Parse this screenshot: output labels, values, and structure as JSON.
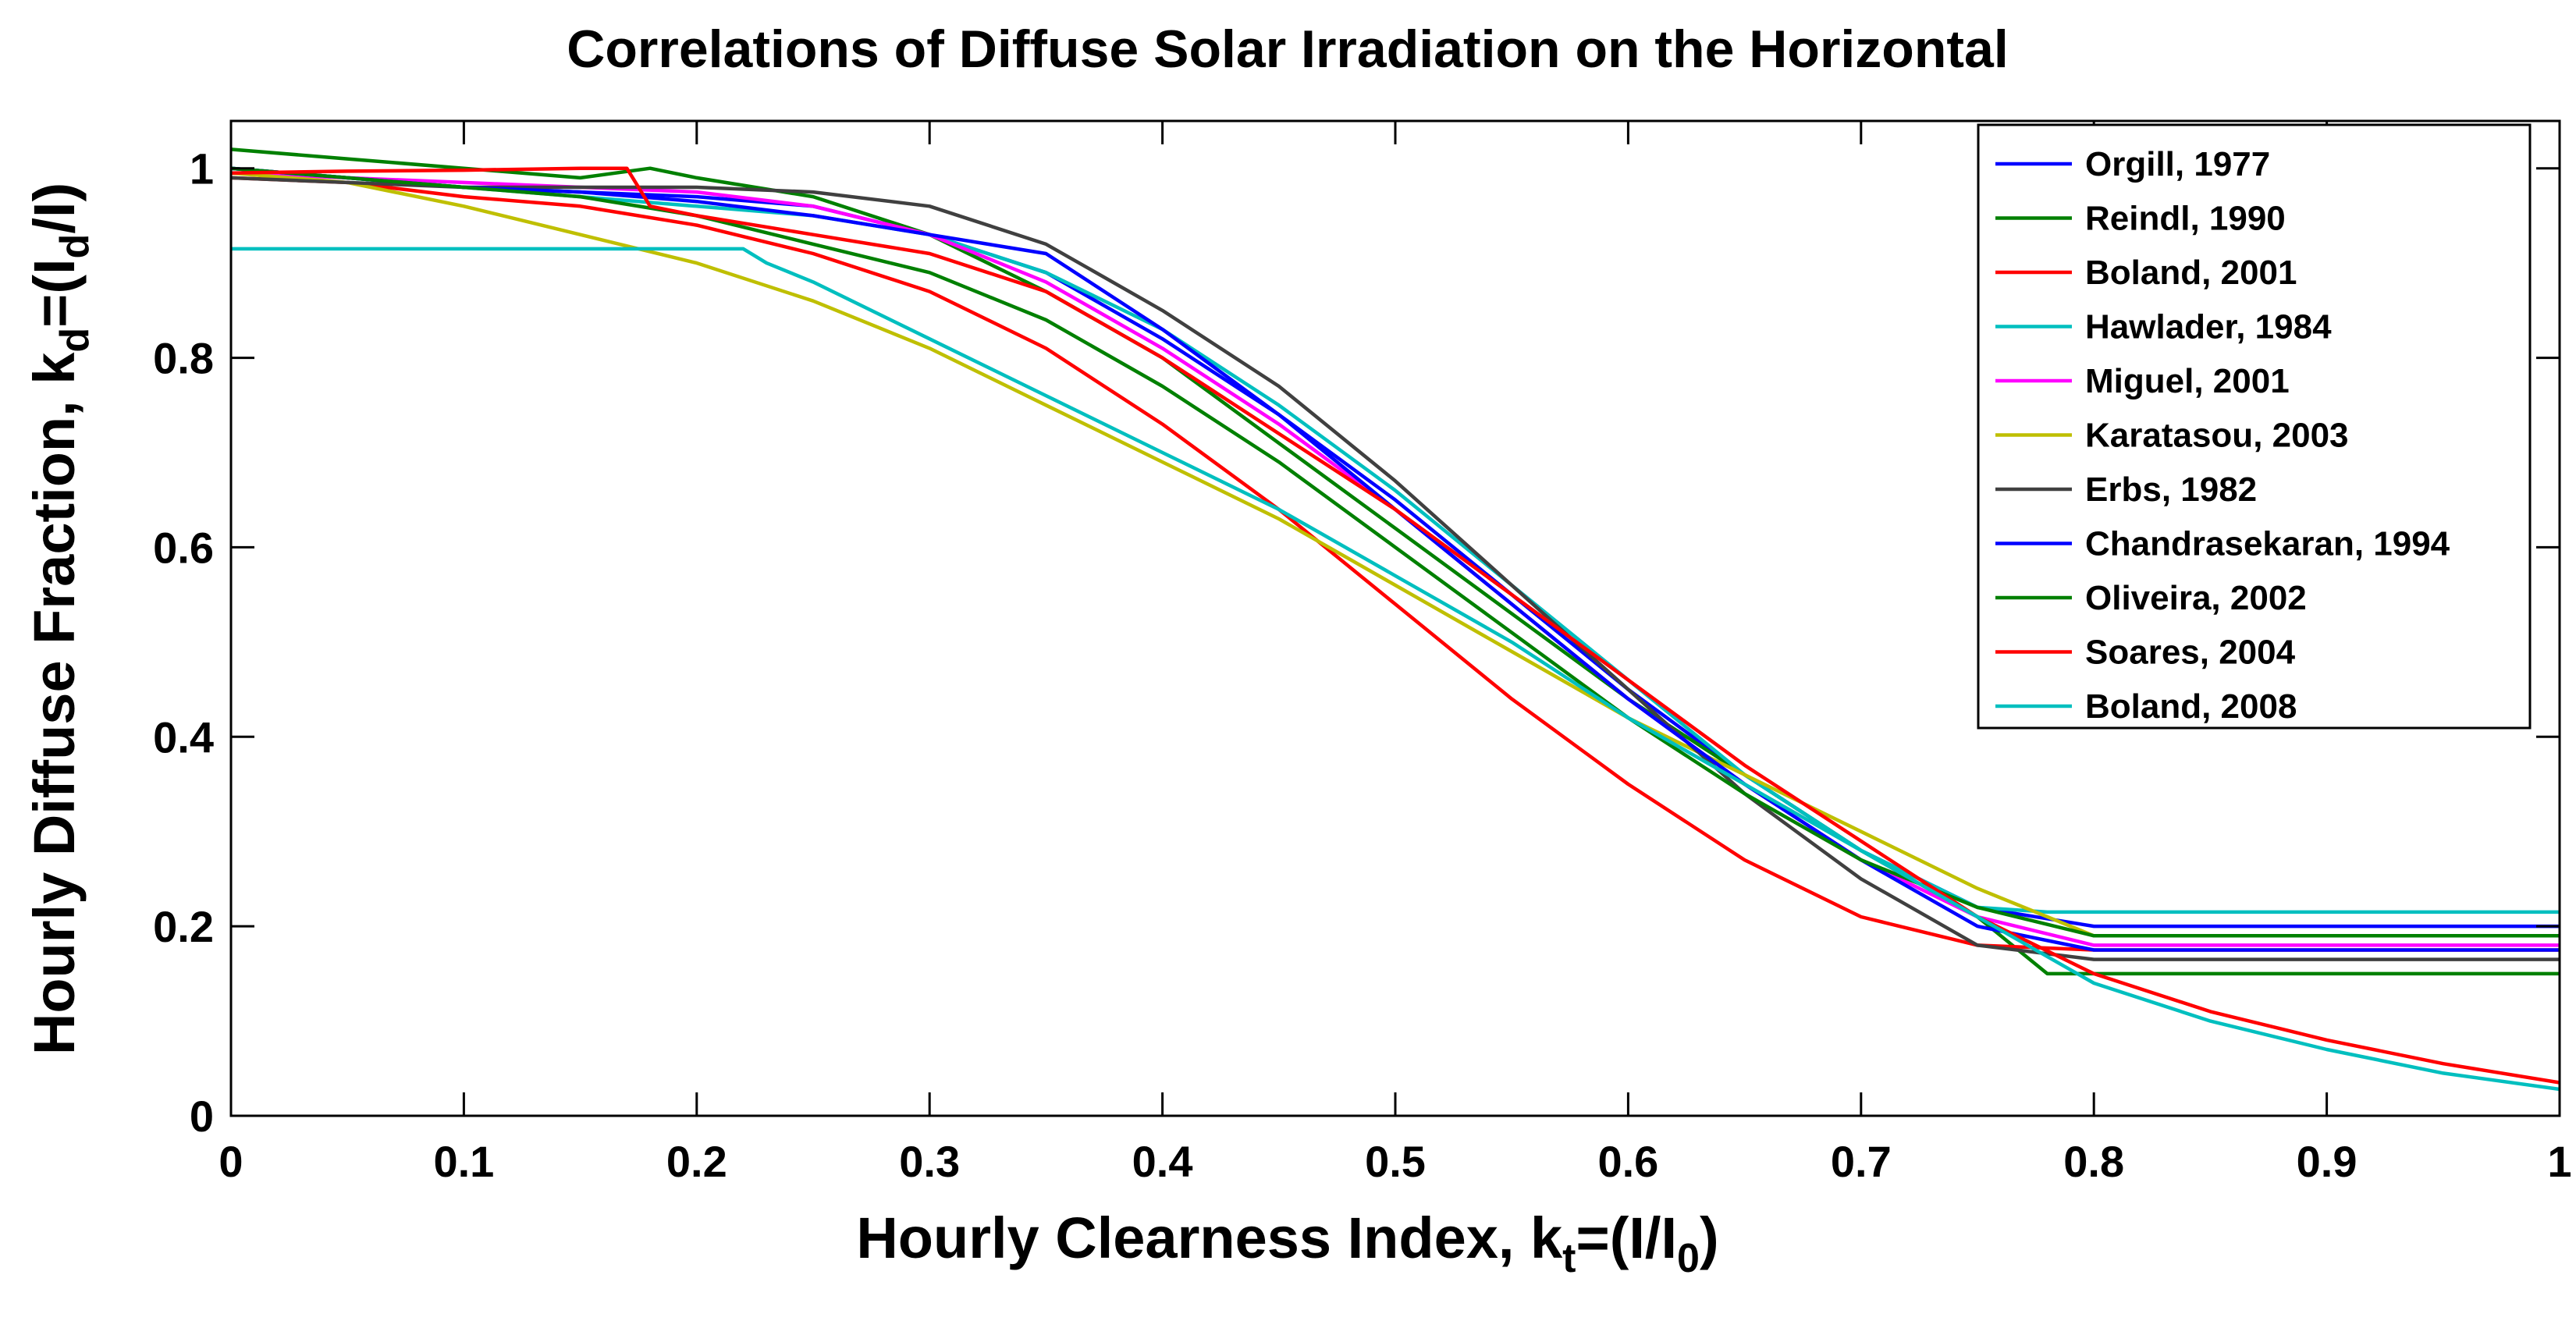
{
  "chart_data": {
    "type": "line",
    "title": "Correlations of Diffuse Solar Irradiation on the Horizontal",
    "xlabel": {
      "main": "Hourly Clearness Index, k",
      "sub": "t",
      "rest": "=(I/I",
      "sub2": "0",
      "end": ")"
    },
    "ylabel": {
      "main": "Hourly Diffuse Fraction, k",
      "sub": "d",
      "rest": "=(I",
      "sub2": "d",
      "end": "/I)"
    },
    "xlim": [
      0,
      1
    ],
    "ylim": [
      0,
      1.05
    ],
    "xticks": [
      0,
      0.1,
      0.2,
      0.3,
      0.4,
      0.5,
      0.6,
      0.7,
      0.8,
      0.9,
      1
    ],
    "xtick_labels": [
      "0",
      "0.1",
      "0.2",
      "0.3",
      "0.4",
      "0.5",
      "0.6",
      "0.7",
      "0.8",
      "0.9",
      "1"
    ],
    "yticks": [
      0,
      0.2,
      0.4,
      0.6,
      0.8,
      1
    ],
    "ytick_labels": [
      "0",
      "0.2",
      "0.4",
      "0.6",
      "0.8",
      "1"
    ],
    "grid": false,
    "legend_position": "top-right",
    "series": [
      {
        "name": "Orgill, 1977",
        "color": "#0000FF",
        "x": [
          0,
          0.05,
          0.1,
          0.15,
          0.2,
          0.25,
          0.3,
          0.35,
          0.4,
          0.45,
          0.5,
          0.55,
          0.6,
          0.65,
          0.7,
          0.75,
          0.8,
          0.85,
          0.9,
          0.95,
          1
        ],
        "y": [
          1.0,
          0.99,
          0.98,
          0.975,
          0.97,
          0.96,
          0.93,
          0.89,
          0.82,
          0.74,
          0.65,
          0.55,
          0.45,
          0.36,
          0.28,
          0.22,
          0.2,
          0.2,
          0.2,
          0.2,
          0.2
        ]
      },
      {
        "name": "Reindl, 1990",
        "color": "#008000",
        "x": [
          0,
          0.05,
          0.1,
          0.15,
          0.18,
          0.2,
          0.25,
          0.3,
          0.35,
          0.4,
          0.45,
          0.5,
          0.55,
          0.6,
          0.65,
          0.7,
          0.75,
          0.78,
          0.8,
          0.85,
          0.9,
          0.95,
          1
        ],
        "y": [
          1.02,
          1.01,
          1.0,
          0.99,
          1.0,
          0.99,
          0.97,
          0.93,
          0.87,
          0.8,
          0.71,
          0.62,
          0.53,
          0.44,
          0.36,
          0.28,
          0.21,
          0.15,
          0.15,
          0.15,
          0.15,
          0.15,
          0.15
        ]
      },
      {
        "name": "Boland, 2001",
        "color": "#FF0000",
        "x": [
          0,
          0.05,
          0.1,
          0.15,
          0.2,
          0.25,
          0.3,
          0.35,
          0.4,
          0.45,
          0.5,
          0.55,
          0.6,
          0.65,
          0.7,
          0.75,
          0.8,
          0.85,
          0.9,
          0.95,
          1
        ],
        "y": [
          0.99,
          0.985,
          0.97,
          0.96,
          0.94,
          0.91,
          0.87,
          0.81,
          0.73,
          0.64,
          0.54,
          0.44,
          0.35,
          0.27,
          0.21,
          0.18,
          0.175,
          0.175,
          0.175,
          0.175,
          0.175
        ]
      },
      {
        "name": "Hawlader, 1984",
        "color": "#00BFBF",
        "x": [
          0,
          0.05,
          0.1,
          0.15,
          0.2,
          0.25,
          0.3,
          0.35,
          0.4,
          0.45,
          0.5,
          0.55,
          0.6,
          0.65,
          0.7,
          0.75,
          0.78,
          0.8,
          0.85,
          0.9,
          0.95,
          1
        ],
        "y": [
          1.0,
          0.99,
          0.98,
          0.97,
          0.96,
          0.95,
          0.93,
          0.89,
          0.83,
          0.75,
          0.66,
          0.56,
          0.46,
          0.36,
          0.28,
          0.22,
          0.215,
          0.215,
          0.215,
          0.215,
          0.215,
          0.215
        ]
      },
      {
        "name": "Miguel, 2001",
        "color": "#FF00FF",
        "x": [
          0,
          0.05,
          0.1,
          0.15,
          0.2,
          0.25,
          0.3,
          0.35,
          0.4,
          0.45,
          0.5,
          0.55,
          0.6,
          0.65,
          0.7,
          0.75,
          0.8,
          0.85,
          0.9,
          0.95,
          1
        ],
        "y": [
          0.995,
          0.99,
          0.985,
          0.98,
          0.975,
          0.96,
          0.93,
          0.88,
          0.81,
          0.73,
          0.64,
          0.54,
          0.44,
          0.35,
          0.27,
          0.21,
          0.18,
          0.18,
          0.18,
          0.18,
          0.18
        ]
      },
      {
        "name": "Karatasou, 2003",
        "color": "#BFBF00",
        "x": [
          0,
          0.05,
          0.1,
          0.15,
          0.2,
          0.25,
          0.3,
          0.35,
          0.4,
          0.45,
          0.5,
          0.55,
          0.6,
          0.65,
          0.7,
          0.75,
          0.8,
          0.85,
          0.9,
          0.95,
          1
        ],
        "y": [
          0.995,
          0.985,
          0.96,
          0.93,
          0.9,
          0.86,
          0.81,
          0.75,
          0.69,
          0.63,
          0.56,
          0.49,
          0.42,
          0.36,
          0.3,
          0.24,
          0.19,
          0.19,
          0.19,
          0.19,
          0.19
        ]
      },
      {
        "name": "Erbs, 1982",
        "color": "#404040",
        "x": [
          0,
          0.05,
          0.1,
          0.15,
          0.2,
          0.25,
          0.3,
          0.35,
          0.4,
          0.45,
          0.5,
          0.55,
          0.6,
          0.65,
          0.7,
          0.75,
          0.8,
          0.85,
          0.9,
          0.95,
          1
        ],
        "y": [
          0.99,
          0.985,
          0.98,
          0.98,
          0.98,
          0.975,
          0.96,
          0.92,
          0.85,
          0.77,
          0.67,
          0.56,
          0.45,
          0.34,
          0.25,
          0.18,
          0.165,
          0.165,
          0.165,
          0.165,
          0.165
        ]
      },
      {
        "name": "Chandrasekaran, 1994",
        "color": "#0000FF",
        "x": [
          0,
          0.05,
          0.1,
          0.15,
          0.2,
          0.25,
          0.3,
          0.35,
          0.4,
          0.45,
          0.5,
          0.55,
          0.6,
          0.65,
          0.7,
          0.75,
          0.8,
          0.85,
          0.9,
          0.95,
          1
        ],
        "y": [
          1.0,
          0.99,
          0.98,
          0.975,
          0.965,
          0.95,
          0.93,
          0.91,
          0.83,
          0.74,
          0.64,
          0.54,
          0.44,
          0.35,
          0.27,
          0.2,
          0.175,
          0.175,
          0.175,
          0.175,
          0.175
        ]
      },
      {
        "name": "Oliveira, 2002",
        "color": "#008000",
        "x": [
          0,
          0.05,
          0.1,
          0.15,
          0.2,
          0.25,
          0.3,
          0.35,
          0.4,
          0.45,
          0.5,
          0.55,
          0.6,
          0.65,
          0.7,
          0.75,
          0.8,
          0.85,
          0.9,
          0.95,
          1
        ],
        "y": [
          1.0,
          0.99,
          0.98,
          0.97,
          0.95,
          0.92,
          0.89,
          0.84,
          0.77,
          0.69,
          0.6,
          0.51,
          0.42,
          0.34,
          0.27,
          0.22,
          0.19,
          0.19,
          0.19,
          0.19,
          0.19
        ]
      },
      {
        "name": "Soares, 2004",
        "color": "#FF0000",
        "x": [
          0,
          0.05,
          0.1,
          0.15,
          0.17,
          0.18,
          0.2,
          0.25,
          0.3,
          0.35,
          0.4,
          0.45,
          0.5,
          0.55,
          0.6,
          0.65,
          0.7,
          0.75,
          0.8,
          0.85,
          0.9,
          0.95,
          1
        ],
        "y": [
          0.995,
          0.997,
          0.998,
          1.0,
          1.0,
          0.96,
          0.95,
          0.93,
          0.91,
          0.87,
          0.8,
          0.72,
          0.64,
          0.55,
          0.46,
          0.37,
          0.29,
          0.21,
          0.15,
          0.11,
          0.08,
          0.055,
          0.035
        ]
      },
      {
        "name": "Boland, 2008",
        "color": "#00BFBF",
        "x": [
          0,
          0.1,
          0.2,
          0.22,
          0.23,
          0.25,
          0.3,
          0.35,
          0.4,
          0.45,
          0.5,
          0.55,
          0.6,
          0.65,
          0.7,
          0.75,
          0.8,
          0.85,
          0.9,
          0.95,
          1
        ],
        "y": [
          0.915,
          0.915,
          0.915,
          0.915,
          0.9,
          0.88,
          0.82,
          0.76,
          0.7,
          0.64,
          0.57,
          0.5,
          0.42,
          0.35,
          0.28,
          0.21,
          0.14,
          0.1,
          0.07,
          0.045,
          0.028
        ]
      }
    ]
  }
}
